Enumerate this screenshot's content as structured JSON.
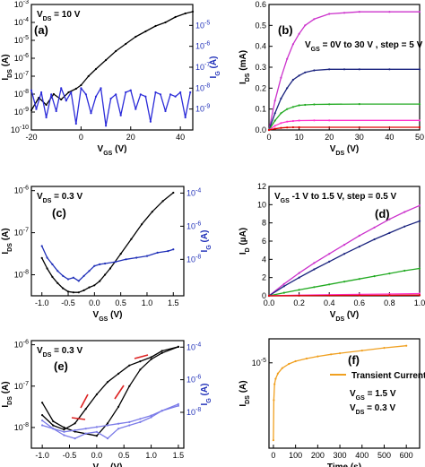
{
  "chart_data": [
    {
      "panel": "a",
      "type": "line",
      "annotation": "V_DS = 10 V",
      "xlabel": "V_GS (V)",
      "ylabel": "I_DS (A)",
      "y2label": "I_G (A)",
      "xlim": [
        -20,
        45
      ],
      "ylim_log": [
        -10,
        -3
      ],
      "y2lim_log": [
        -10,
        -4
      ],
      "x_ticks": [
        "-20",
        "0",
        "20",
        "40"
      ],
      "y_ticks": [
        "10^-3",
        "10^-4",
        "10^-5",
        "10^-6",
        "10^-7",
        "10^-8",
        "10^-9",
        "10^-10"
      ],
      "y2_ticks": [
        "10^-5",
        "10^-6",
        "10^-7",
        "10^-8",
        "10^-9"
      ],
      "series": [
        {
          "axis": "left",
          "color": "#000000",
          "x": [
            -20,
            -17,
            -14,
            -11,
            -8,
            -5,
            -2,
            0,
            3,
            6,
            10,
            14,
            18,
            22,
            26,
            30,
            34,
            38,
            42,
            45
          ],
          "y": [
            -8.9,
            -8.2,
            -8.6,
            -8.0,
            -8.3,
            -7.9,
            -7.7,
            -7.5,
            -7.0,
            -6.6,
            -6.1,
            -5.6,
            -5.2,
            -4.8,
            -4.5,
            -4.2,
            -4.0,
            -3.7,
            -3.5,
            -3.4
          ]
        },
        {
          "axis": "right",
          "color": "#2b2bd9",
          "x": [
            -20,
            -18,
            -16,
            -14,
            -12,
            -10,
            -8,
            -6,
            -4,
            -2,
            0,
            2,
            4,
            6,
            8,
            10,
            12,
            14,
            16,
            18,
            20,
            22,
            24,
            26,
            28,
            30,
            32,
            34,
            36,
            38,
            40,
            42,
            44
          ],
          "y": [
            -8.1,
            -9.0,
            -8.2,
            -9.4,
            -8.3,
            -9.1,
            -8.0,
            -8.6,
            -8.2,
            -9.7,
            -8.0,
            -8.3,
            -9.2,
            -8.4,
            -8.0,
            -9.8,
            -8.5,
            -8.3,
            -9.3,
            -8.2,
            -8.1,
            -9.0,
            -8.3,
            -8.4,
            -9.6,
            -8.2,
            -8.3,
            -9.1,
            -8.3,
            -8.4,
            -8.2,
            -9.4,
            -8.2
          ]
        }
      ]
    },
    {
      "panel": "b",
      "type": "line",
      "annotation": "V_GS = 0V to 30 V , step = 5 V",
      "xlabel": "V_DS (V)",
      "ylabel": "I_DS (mA)",
      "xlim": [
        0,
        50
      ],
      "ylim": [
        0,
        0.6
      ],
      "x_ticks": [
        "0",
        "10",
        "20",
        "30",
        "40",
        "50"
      ],
      "y_ticks": [
        "0.0",
        "0.1",
        "0.2",
        "0.3",
        "0.4",
        "0.5",
        "0.6"
      ],
      "series": [
        {
          "color": "#cc33cc",
          "x": [
            0,
            2,
            4,
            6,
            8,
            10,
            12,
            15,
            20,
            25,
            30,
            40,
            50
          ],
          "y": [
            0,
            0.14,
            0.25,
            0.34,
            0.41,
            0.46,
            0.5,
            0.53,
            0.555,
            0.56,
            0.565,
            0.565,
            0.565
          ]
        },
        {
          "color": "#1a237e",
          "x": [
            0,
            2,
            4,
            6,
            8,
            10,
            12,
            15,
            20,
            25,
            30,
            40,
            50
          ],
          "y": [
            0,
            0.08,
            0.15,
            0.2,
            0.24,
            0.26,
            0.275,
            0.285,
            0.29,
            0.29,
            0.29,
            0.29,
            0.29
          ]
        },
        {
          "color": "#22aa22",
          "x": [
            0,
            2,
            4,
            6,
            8,
            10,
            12,
            15,
            20,
            30,
            50
          ],
          "y": [
            0,
            0.045,
            0.08,
            0.1,
            0.11,
            0.118,
            0.12,
            0.122,
            0.123,
            0.124,
            0.124
          ]
        },
        {
          "color": "#ff33cc",
          "x": [
            0,
            2,
            4,
            6,
            8,
            10,
            15,
            20,
            50
          ],
          "y": [
            0,
            0.02,
            0.033,
            0.04,
            0.043,
            0.045,
            0.046,
            0.046,
            0.046
          ]
        },
        {
          "color": "#dd0000",
          "x": [
            0,
            2,
            4,
            6,
            8,
            10,
            50
          ],
          "y": [
            0,
            0.006,
            0.01,
            0.012,
            0.013,
            0.013,
            0.013
          ]
        }
      ]
    },
    {
      "panel": "c",
      "type": "line",
      "annotation": "V_DS = 0.3 V",
      "xlabel": "V_GS (V)",
      "ylabel": "I_DS (A)",
      "y2label": "I_G (A)",
      "xlim": [
        -1.2,
        1.7
      ],
      "ylim_log": [
        -8.5,
        -5.9
      ],
      "y2lim_log": [
        -10.2,
        -3.6
      ],
      "x_ticks": [
        "-1.0",
        "-0.5",
        "0.0",
        "0.5",
        "1.0",
        "1.5"
      ],
      "y_ticks": [
        "10^-6",
        "10^-7",
        "10^-8"
      ],
      "y2_ticks": [
        "10^-4",
        "10^-6",
        "10^-8"
      ],
      "series": [
        {
          "axis": "left",
          "color": "#000000",
          "x": [
            -1.0,
            -0.9,
            -0.8,
            -0.7,
            -0.6,
            -0.5,
            -0.4,
            -0.3,
            -0.2,
            -0.1,
            0.0,
            0.1,
            0.2,
            0.3,
            0.5,
            0.7,
            0.9,
            1.1,
            1.3,
            1.5
          ],
          "y": [
            -7.6,
            -7.85,
            -8.05,
            -8.2,
            -8.32,
            -8.4,
            -8.42,
            -8.42,
            -8.37,
            -8.3,
            -8.25,
            -8.15,
            -8.0,
            -7.85,
            -7.5,
            -7.15,
            -6.8,
            -6.5,
            -6.25,
            -6.05
          ]
        },
        {
          "axis": "right",
          "color": "#1f2fb8",
          "x": [
            -1.0,
            -0.9,
            -0.8,
            -0.7,
            -0.6,
            -0.5,
            -0.4,
            -0.3,
            -0.2,
            -0.1,
            0.0,
            0.1,
            0.2,
            0.4,
            0.6,
            0.8,
            1.0,
            1.2,
            1.4,
            1.5
          ],
          "y": [
            -7.2,
            -7.9,
            -8.3,
            -8.7,
            -9.0,
            -9.2,
            -9.1,
            -9.3,
            -9.0,
            -8.7,
            -8.4,
            -8.3,
            -8.25,
            -8.15,
            -8.0,
            -7.9,
            -7.8,
            -7.6,
            -7.5,
            -7.4
          ]
        }
      ]
    },
    {
      "panel": "d",
      "type": "line",
      "annotation": "V_GS -1 V to 1.5 V, step = 0.5 V",
      "xlabel": "V_DS (V)",
      "ylabel": "I_D (µA)",
      "xlim": [
        0,
        1.0
      ],
      "ylim": [
        0,
        12
      ],
      "x_ticks": [
        "0.0",
        "0.2",
        "0.4",
        "0.6",
        "0.8",
        "1.0"
      ],
      "y_ticks": [
        "0",
        "2",
        "4",
        "6",
        "8",
        "10",
        "12"
      ],
      "series": [
        {
          "color": "#cc33cc",
          "x": [
            0,
            0.1,
            0.2,
            0.3,
            0.4,
            0.5,
            0.6,
            0.7,
            0.8,
            0.9,
            1.0
          ],
          "y": [
            0,
            1.3,
            2.5,
            3.6,
            4.6,
            5.6,
            6.6,
            7.5,
            8.4,
            9.2,
            9.9
          ]
        },
        {
          "color": "#1a237e",
          "x": [
            0,
            0.1,
            0.2,
            0.3,
            0.4,
            0.5,
            0.6,
            0.7,
            0.8,
            0.9,
            1.0
          ],
          "y": [
            0,
            1.05,
            2.0,
            2.9,
            3.75,
            4.6,
            5.4,
            6.2,
            6.9,
            7.6,
            8.2
          ]
        },
        {
          "color": "#22aa22",
          "x": [
            0,
            0.1,
            0.2,
            0.3,
            0.4,
            0.5,
            0.6,
            0.7,
            0.8,
            0.9,
            1.0
          ],
          "y": [
            0,
            0.33,
            0.65,
            0.95,
            1.25,
            1.55,
            1.85,
            2.15,
            2.45,
            2.75,
            3.0
          ]
        },
        {
          "color": "#ff33cc",
          "x": [
            0,
            0.2,
            0.4,
            0.6,
            0.8,
            1.0
          ],
          "y": [
            0,
            0.07,
            0.12,
            0.16,
            0.2,
            0.25
          ]
        },
        {
          "color": "#dd0000",
          "x": [
            0,
            0.2,
            0.4,
            0.6,
            0.8,
            1.0
          ],
          "y": [
            0,
            0.02,
            0.04,
            0.05,
            0.06,
            0.08
          ]
        }
      ]
    },
    {
      "panel": "e",
      "type": "line",
      "annotation": "V_DS = 0.3 V",
      "xlabel": "V_GS (V)",
      "ylabel": "I_DS (A)",
      "y2label": "I_G (A)",
      "xlim": [
        -1.2,
        1.6
      ],
      "ylim_log": [
        -8.5,
        -5.9
      ],
      "y2lim_log": [
        -10.2,
        -3.6
      ],
      "x_ticks": [
        "-1.0",
        "-0.5",
        "0.0",
        "0.5",
        "1.0",
        "1.5"
      ],
      "y_ticks": [
        "10^-6",
        "10^-7",
        "10^-8"
      ],
      "y2_ticks": [
        "10^-4",
        "10^-6",
        "10^-8"
      ],
      "series": [
        {
          "axis": "left",
          "color": "#000000",
          "x": [
            -1.0,
            -0.8,
            -0.6,
            -0.4,
            -0.2,
            0.0,
            0.2,
            0.4,
            0.6,
            0.8,
            1.0,
            1.2,
            1.5
          ],
          "y": [
            -7.4,
            -7.85,
            -8.0,
            -8.1,
            -8.15,
            -8.2,
            -7.9,
            -7.5,
            -7.0,
            -6.6,
            -6.35,
            -6.2,
            -6.05
          ]
        },
        {
          "axis": "left",
          "color": "#000000",
          "x": [
            1.5,
            1.2,
            1.0,
            0.8,
            0.6,
            0.4,
            0.2,
            0.0,
            -0.2,
            -0.4,
            -0.6,
            -0.8,
            -1.0
          ],
          "y": [
            -6.05,
            -6.15,
            -6.3,
            -6.4,
            -6.5,
            -6.7,
            -6.9,
            -7.2,
            -7.55,
            -7.9,
            -8.05,
            -7.95,
            -7.7
          ]
        },
        {
          "axis": "right",
          "color": "#7b7be8",
          "x": [
            -1.0,
            -0.8,
            -0.6,
            -0.4,
            -0.2,
            0.0,
            0.2,
            0.4,
            0.6,
            0.8,
            1.0,
            1.2,
            1.5
          ],
          "y": [
            -8.5,
            -9.0,
            -9.4,
            -9.6,
            -9.3,
            -9.2,
            -9.6,
            -9.0,
            -8.8,
            -8.6,
            -8.3,
            -7.9,
            -7.5
          ]
        },
        {
          "axis": "right",
          "color": "#7b7be8",
          "x": [
            1.5,
            1.2,
            1.0,
            0.8,
            0.6,
            0.4,
            0.2,
            0.0,
            -0.2,
            -0.4,
            -0.6,
            -0.8,
            -1.0
          ],
          "y": [
            -7.6,
            -7.9,
            -8.2,
            -8.4,
            -8.6,
            -8.7,
            -8.8,
            -8.9,
            -9.0,
            -9.1,
            -9.2,
            -9.0,
            -8.8
          ]
        }
      ]
    },
    {
      "panel": "f",
      "type": "line",
      "legend": "Transient Current",
      "annotations": [
        "V_GS = 1.5 V",
        "V_DS = 0.3 V"
      ],
      "xlabel": "Time (s)",
      "ylabel": "I_DS (A)",
      "xlim": [
        -20,
        660
      ],
      "ylim_log": [
        -6.6,
        -4.55
      ],
      "x_ticks": [
        "0",
        "100",
        "200",
        "300",
        "400",
        "500",
        "600"
      ],
      "y_ticks": [
        "10^-5"
      ],
      "series": [
        {
          "name": "Transient Current",
          "color": "#f0a020",
          "x": [
            0,
            2,
            5,
            10,
            20,
            40,
            70,
            100,
            150,
            200,
            260,
            300,
            400,
            500,
            600
          ],
          "y": [
            -6.45,
            -5.7,
            -5.4,
            -5.3,
            -5.2,
            -5.1,
            -5.02,
            -4.97,
            -4.92,
            -4.88,
            -4.84,
            -4.82,
            -4.77,
            -4.72,
            -4.68
          ]
        }
      ]
    }
  ]
}
